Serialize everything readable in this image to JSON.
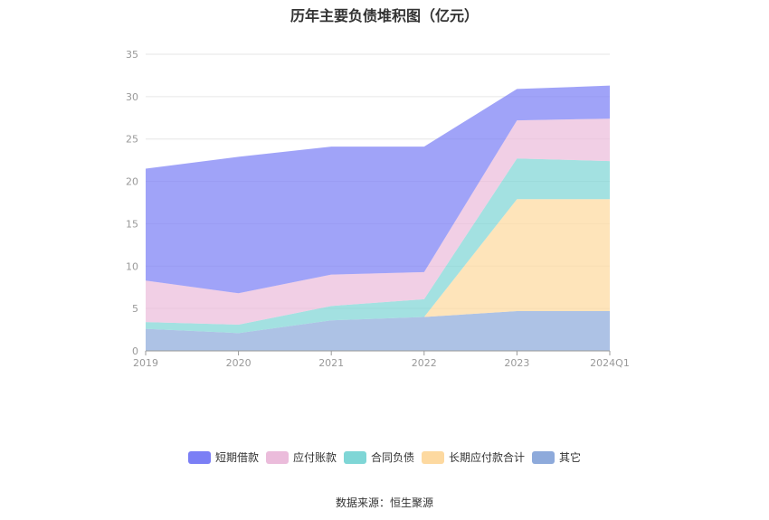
{
  "chart_data": {
    "type": "area",
    "title": "历年主要负债堆积图（亿元）",
    "categories": [
      "2019",
      "2020",
      "2021",
      "2022",
      "2023",
      "2024Q1"
    ],
    "ylim": [
      0,
      35
    ],
    "yticks": [
      0,
      5,
      10,
      15,
      20,
      25,
      30,
      35
    ],
    "stacked": true,
    "grid": true,
    "legend_position": "bottom",
    "series": [
      {
        "name": "其它",
        "color": "#8eaadb",
        "values": [
          2.6,
          2.1,
          3.6,
          4.0,
          4.7,
          4.7
        ]
      },
      {
        "name": "长期应付款合计",
        "color": "#fdd9a0",
        "values": [
          0.0,
          0.0,
          0.0,
          0.0,
          13.2,
          13.2
        ]
      },
      {
        "name": "合同负债",
        "color": "#7fd6d6",
        "values": [
          0.8,
          1.0,
          1.7,
          2.1,
          4.8,
          4.5
        ]
      },
      {
        "name": "应付账款",
        "color": "#ebbcdb",
        "values": [
          4.9,
          3.7,
          3.7,
          3.2,
          4.5,
          5.0
        ]
      },
      {
        "name": "短期借款",
        "color": "#7b7ff5",
        "values": [
          13.2,
          16.1,
          15.1,
          14.8,
          3.7,
          3.9
        ]
      }
    ],
    "legend_order": [
      "短期借款",
      "应付账款",
      "合同负债",
      "长期应付款合计",
      "其它"
    ],
    "source": "数据来源：恒生聚源"
  }
}
